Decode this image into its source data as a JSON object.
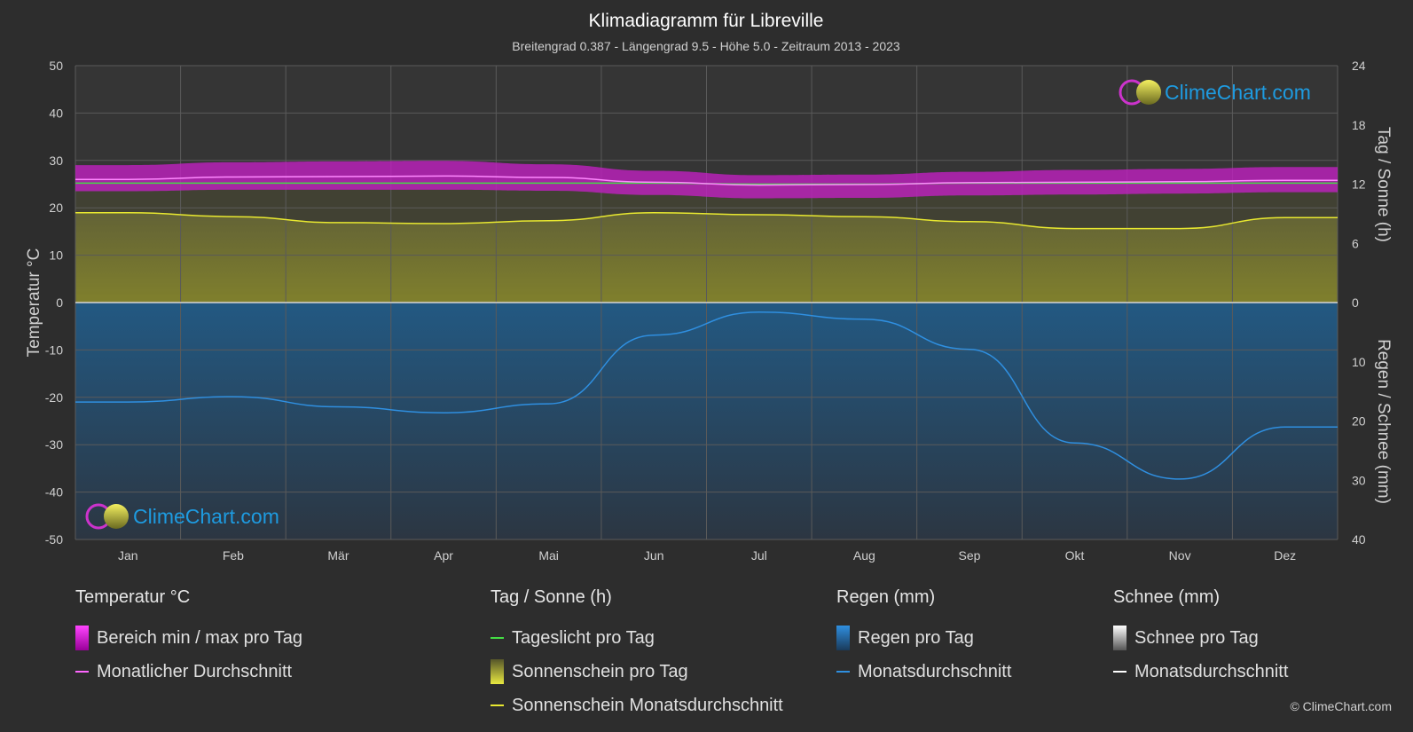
{
  "chart_data": {
    "type": "area",
    "title": "Klimadiagramm für Libreville",
    "subtitle": "Breitengrad 0.387 - Längengrad 9.5 - Höhe 5.0 - Zeitraum 2013 - 2023",
    "categories": [
      "Jan",
      "Feb",
      "Mär",
      "Apr",
      "Mai",
      "Jun",
      "Jul",
      "Aug",
      "Sep",
      "Okt",
      "Nov",
      "Dez"
    ],
    "axes": {
      "left": {
        "label": "Temperatur °C",
        "range": [
          -50,
          50
        ],
        "ticks": [
          50,
          40,
          30,
          20,
          10,
          0,
          -10,
          -20,
          -30,
          -40,
          -50
        ]
      },
      "right_top": {
        "label": "Tag / Sonne (h)",
        "range": [
          0,
          24
        ],
        "ticks": [
          24,
          18,
          12,
          6,
          0
        ]
      },
      "right_bottom": {
        "label": "Regen / Schnee (mm)",
        "range": [
          0,
          40
        ],
        "ticks": [
          0,
          10,
          20,
          30,
          40
        ]
      }
    },
    "grid": true,
    "series": [
      {
        "name": "Monatlicher Durchschnitt",
        "unit": "°C",
        "color": "#ff66ff",
        "values": [
          26.0,
          26.5,
          26.6,
          26.7,
          26.4,
          25.4,
          24.8,
          24.9,
          25.3,
          25.4,
          25.5,
          25.8
        ]
      },
      {
        "name": "Bereich min / max pro Tag",
        "unit": "°C",
        "color": "#cc22cc",
        "min": [
          23.5,
          23.8,
          23.8,
          23.8,
          23.6,
          22.7,
          22.0,
          22.1,
          22.6,
          22.8,
          23.0,
          23.3
        ],
        "max": [
          29.0,
          29.6,
          29.8,
          29.9,
          29.2,
          27.8,
          26.9,
          27.0,
          27.6,
          28.0,
          28.2,
          28.6
        ]
      },
      {
        "name": "Tageslicht pro Tag",
        "unit": "h",
        "color": "#44dd44",
        "values": [
          12.1,
          12.1,
          12.1,
          12.1,
          12.1,
          12.1,
          12.0,
          12.0,
          12.1,
          12.1,
          12.1,
          12.1
        ]
      },
      {
        "name": "Sonnenschein Monatsdurchschnitt",
        "unit": "h",
        "color": "#e8e830",
        "values": [
          9.1,
          8.7,
          8.1,
          8.0,
          8.3,
          9.1,
          8.9,
          8.7,
          8.2,
          7.5,
          7.5,
          8.6
        ]
      },
      {
        "name": "Regen Monatsdurchschnitt",
        "unit": "mm",
        "color": "#2f8fe0",
        "values": [
          16.8,
          15.9,
          17.6,
          18.6,
          17.1,
          5.5,
          1.6,
          2.8,
          7.9,
          23.7,
          29.8,
          21.0
        ]
      },
      {
        "name": "Schnee Monatsdurchschnitt",
        "unit": "mm",
        "color": "#ffffff",
        "values": [
          0,
          0,
          0,
          0,
          0,
          0,
          0,
          0,
          0,
          0,
          0,
          0
        ]
      }
    ]
  },
  "logo": {
    "text": "ClimeChart.com"
  },
  "legend": {
    "groups": [
      {
        "title": "Temperatur °C",
        "items": [
          {
            "label": "Bereich min / max pro Tag",
            "swatch": "box",
            "color": "#dd22dd"
          },
          {
            "label": "Monatlicher Durchschnitt",
            "swatch": "line",
            "color": "#ff66ff"
          }
        ]
      },
      {
        "title": "Tag / Sonne (h)",
        "items": [
          {
            "label": "Tageslicht pro Tag",
            "swatch": "line",
            "color": "#44dd44"
          },
          {
            "label": "Sonnenschein pro Tag",
            "swatch": "box",
            "color": "#cccc33"
          },
          {
            "label": "Sonnenschein Monatsdurchschnitt",
            "swatch": "line",
            "color": "#e8e830"
          }
        ]
      },
      {
        "title": "Regen (mm)",
        "items": [
          {
            "label": "Regen pro Tag",
            "swatch": "box",
            "color": "#2f8fe0"
          },
          {
            "label": "Monatsdurchschnitt",
            "swatch": "line",
            "color": "#2f8fe0"
          }
        ]
      },
      {
        "title": "Schnee (mm)",
        "items": [
          {
            "label": "Schnee pro Tag",
            "swatch": "box",
            "color": "#dddddd"
          },
          {
            "label": "Monatsdurchschnitt",
            "swatch": "line",
            "color": "#ffffff"
          }
        ]
      }
    ]
  },
  "copyright": "© ClimeChart.com"
}
